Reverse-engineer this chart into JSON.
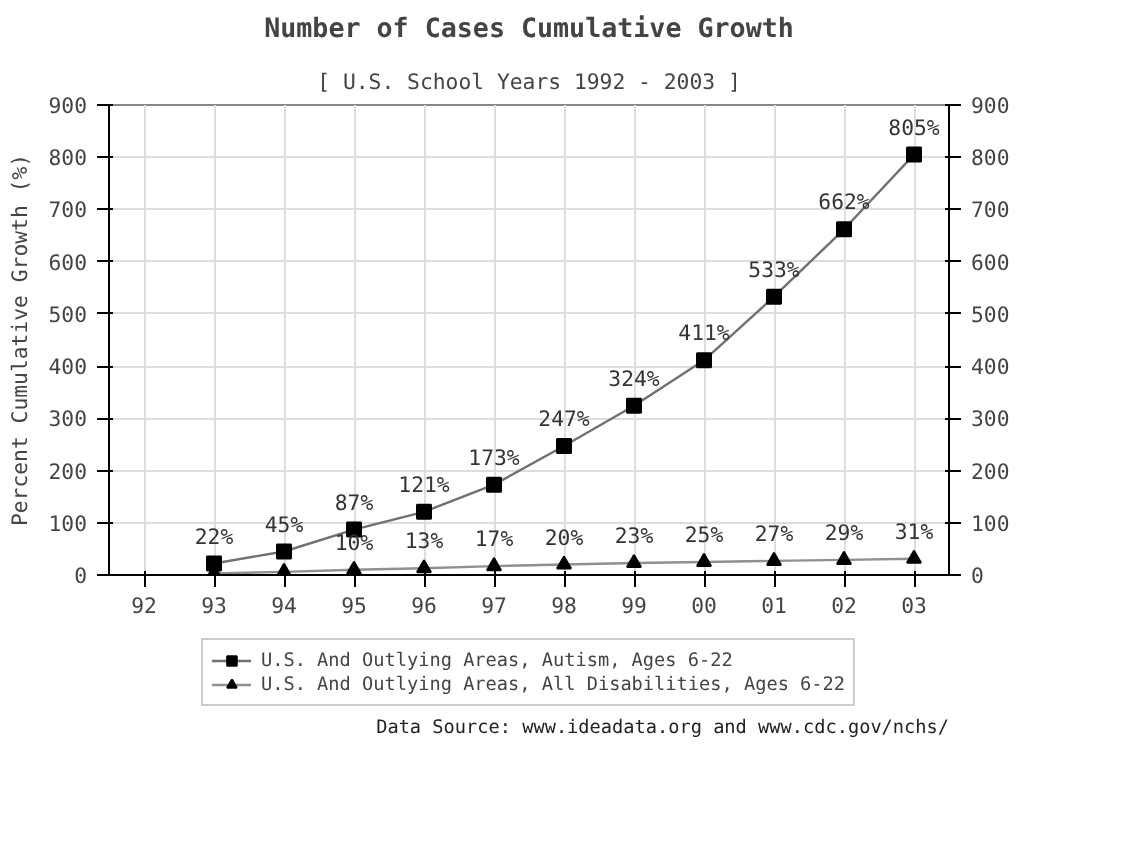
{
  "chart_data": {
    "type": "line",
    "title": "Number of Cases Cumulative Growth",
    "subtitle": "[ U.S. School Years 1992 - 2003 ]",
    "ylabel": "Percent Cumulative Growth (%)",
    "categories": [
      "92",
      "93",
      "94",
      "95",
      "96",
      "97",
      "98",
      "99",
      "00",
      "01",
      "02",
      "03"
    ],
    "series": [
      {
        "name": "U.S. And Outlying Areas, Autism, Ages 6-22",
        "color": "#707070",
        "marker": "square",
        "values": [
          null,
          22,
          45,
          87,
          121,
          173,
          247,
          324,
          411,
          533,
          662,
          805
        ],
        "value_labels": [
          null,
          "22%",
          "45%",
          "87%",
          "121%",
          "173%",
          "247%",
          "324%",
          "411%",
          "533%",
          "662%",
          "805%"
        ]
      },
      {
        "name": "U.S. And Outlying Areas, All Disabilities, Ages 6-22",
        "color": "#909090",
        "marker": "triangle",
        "values": [
          null,
          3,
          6,
          10,
          13,
          17,
          20,
          23,
          25,
          27,
          29,
          31
        ],
        "value_labels": [
          null,
          null,
          null,
          "10%",
          "13%",
          "17%",
          "20%",
          "23%",
          "25%",
          "27%",
          "29%",
          "31%"
        ]
      }
    ],
    "ylim": [
      0,
      900
    ],
    "yticks": [
      0,
      100,
      200,
      300,
      400,
      500,
      600,
      700,
      800,
      900
    ],
    "y2lim": [
      0,
      900
    ],
    "y2ticks": [
      0,
      100,
      200,
      300,
      400,
      500,
      600,
      700,
      800,
      900
    ],
    "grid": true,
    "legend": "bottom",
    "annotations": [
      "Data Source: www.ideadata.org and www.cdc.gov/nchs/"
    ]
  }
}
